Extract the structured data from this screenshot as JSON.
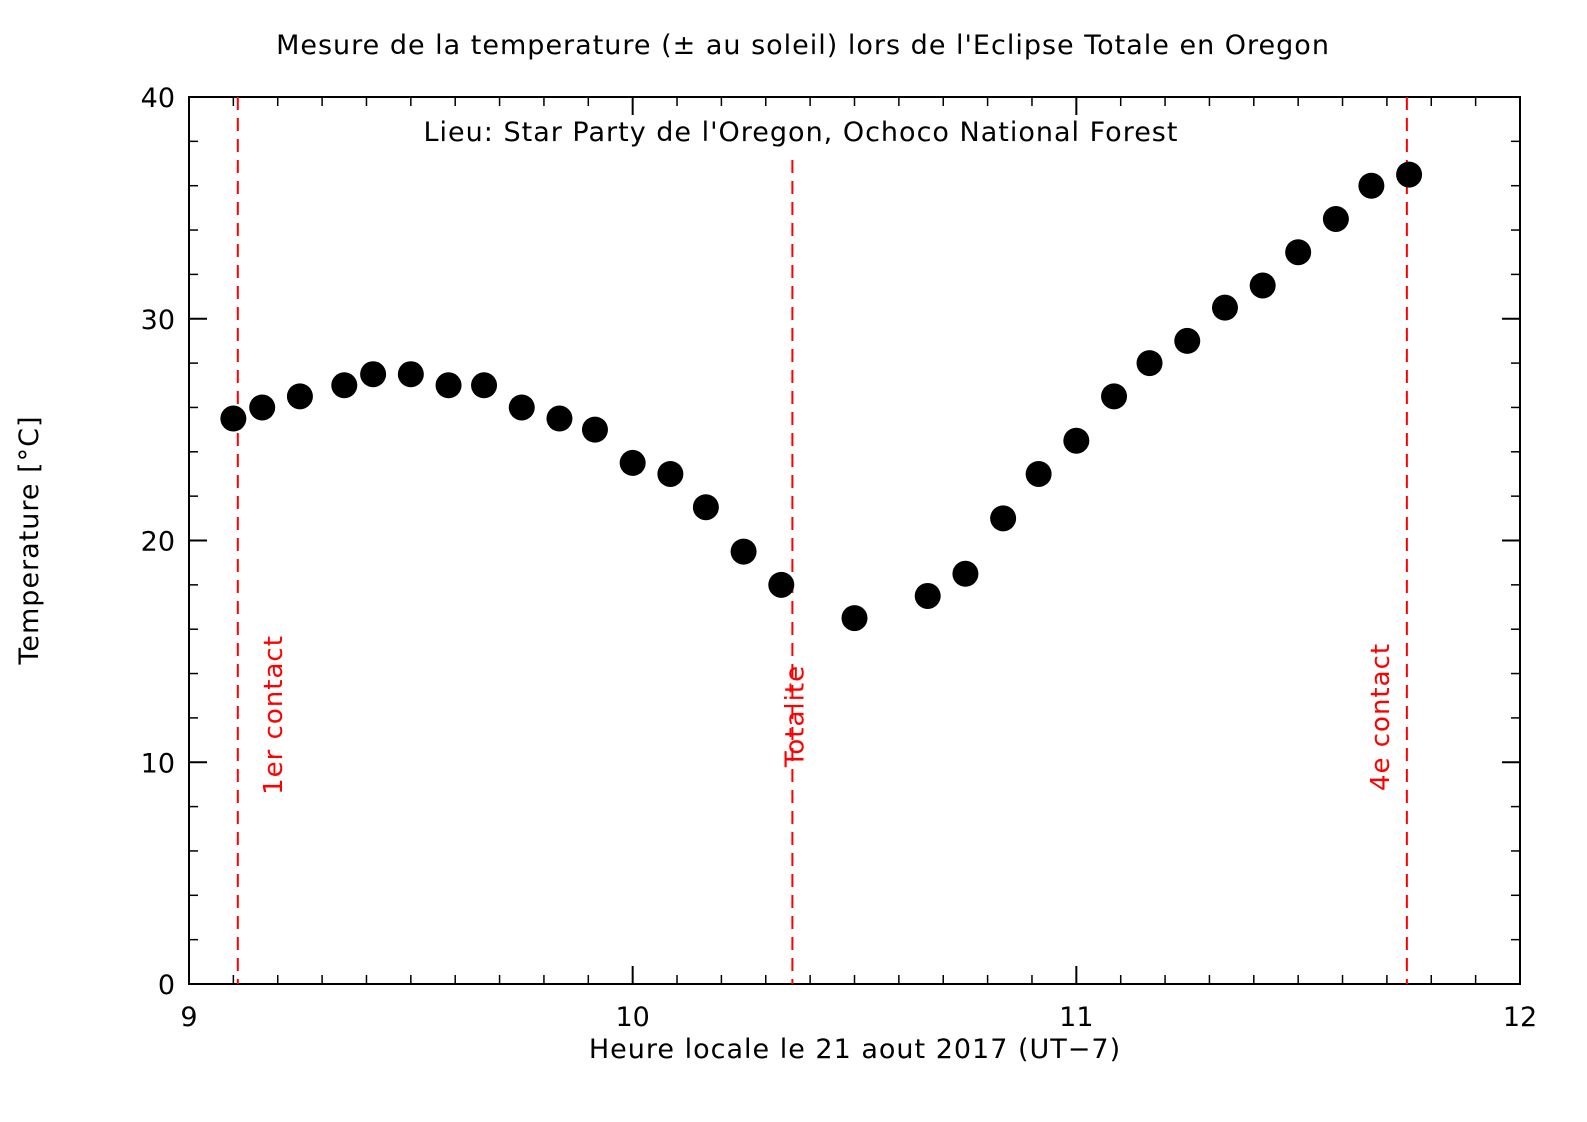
{
  "chart_data": {
    "type": "scatter",
    "title": "Mesure de la temperature (± au soleil) lors de l'Eclipse Totale en Oregon",
    "annotation": "Lieu: Star Party de l'Oregon, Ochoco National Forest",
    "xlabel": "Heure locale le 21 aout 2017 (UT−7)",
    "ylabel": "Temperature [°C]",
    "xlim": [
      9,
      12
    ],
    "ylim": [
      0,
      40
    ],
    "xticks": [
      {
        "value": 9,
        "label": "9"
      },
      {
        "value": 10,
        "label": "10"
      },
      {
        "value": 11,
        "label": "11"
      },
      {
        "value": 12,
        "label": "12"
      }
    ],
    "yticks": [
      {
        "value": 0,
        "label": "0"
      },
      {
        "value": 10,
        "label": "10"
      },
      {
        "value": 20,
        "label": "20"
      },
      {
        "value": 30,
        "label": "30"
      },
      {
        "value": 40,
        "label": "40"
      }
    ],
    "x_minor_step": 0.1,
    "y_minor_step": 2,
    "grid": false,
    "series": [
      {
        "name": "Temperature",
        "color": "#000000",
        "points": [
          {
            "x": 9.1,
            "y": 25.5
          },
          {
            "x": 9.165,
            "y": 26.0
          },
          {
            "x": 9.25,
            "y": 26.5
          },
          {
            "x": 9.35,
            "y": 27.0
          },
          {
            "x": 9.415,
            "y": 27.5
          },
          {
            "x": 9.5,
            "y": 27.5
          },
          {
            "x": 9.585,
            "y": 27.0
          },
          {
            "x": 9.665,
            "y": 27.0
          },
          {
            "x": 9.75,
            "y": 26.0
          },
          {
            "x": 9.835,
            "y": 25.5
          },
          {
            "x": 9.915,
            "y": 25.0
          },
          {
            "x": 10.0,
            "y": 23.5
          },
          {
            "x": 10.085,
            "y": 23.0
          },
          {
            "x": 10.165,
            "y": 21.5
          },
          {
            "x": 10.25,
            "y": 19.5
          },
          {
            "x": 10.335,
            "y": 18.0
          },
          {
            "x": 10.5,
            "y": 16.5
          },
          {
            "x": 10.665,
            "y": 17.5
          },
          {
            "x": 10.75,
            "y": 18.5
          },
          {
            "x": 10.835,
            "y": 21.0
          },
          {
            "x": 10.915,
            "y": 23.0
          },
          {
            "x": 11.0,
            "y": 24.5
          },
          {
            "x": 11.085,
            "y": 26.5
          },
          {
            "x": 11.165,
            "y": 28.0
          },
          {
            "x": 11.25,
            "y": 29.0
          },
          {
            "x": 11.335,
            "y": 30.5
          },
          {
            "x": 11.42,
            "y": 31.5
          },
          {
            "x": 11.5,
            "y": 33.0
          },
          {
            "x": 11.585,
            "y": 34.5
          },
          {
            "x": 11.665,
            "y": 36.0
          },
          {
            "x": 11.75,
            "y": 36.5
          }
        ]
      }
    ],
    "vlines": [
      {
        "name": "1er contact",
        "label": "1er contact",
        "x": 9.11,
        "color": "#ff0000"
      },
      {
        "name": "Totalite",
        "label": "Totalite",
        "x": 10.36,
        "color": "#ff0000"
      },
      {
        "name": "4e contact",
        "label": "4e contact",
        "x": 11.745,
        "color": "#ff0000"
      }
    ]
  }
}
